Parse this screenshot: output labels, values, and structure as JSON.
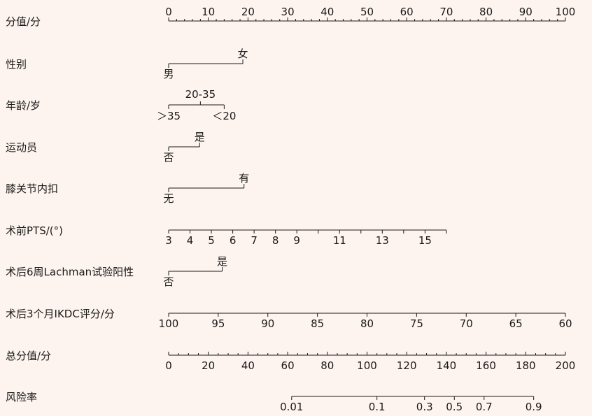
{
  "chart_data": {
    "type": "nomogram",
    "colors": {
      "background": "#fdf4ef",
      "ink": "#1a1a1a"
    },
    "rows": [
      {
        "label": "分值/分",
        "kind": "points",
        "range": [
          0,
          100
        ],
        "major_ticks": [
          0,
          10,
          20,
          30,
          40,
          50,
          60,
          70,
          80,
          90,
          100
        ],
        "minor_step": 2
      },
      {
        "label": "性别",
        "kind": "categorical",
        "levels": [
          {
            "label": "男",
            "points": 0
          },
          {
            "label": "女",
            "points": 18.7
          }
        ]
      },
      {
        "label": "年龄/岁",
        "kind": "categorical",
        "levels": [
          {
            "label": "＞35",
            "points": 0
          },
          {
            "label": "20-35",
            "points": 8
          },
          {
            "label": "＜20",
            "points": 14
          }
        ]
      },
      {
        "label": "运动员",
        "kind": "categorical",
        "levels": [
          {
            "label": "否",
            "points": 0
          },
          {
            "label": "是",
            "points": 7.8
          }
        ]
      },
      {
        "label": "膝关节内扣",
        "kind": "categorical",
        "levels": [
          {
            "label": "无",
            "points": 0
          },
          {
            "label": "有",
            "points": 19
          }
        ]
      },
      {
        "label": "术前PTS/(°)",
        "kind": "continuous",
        "axis_start": 3,
        "axis_end": 16,
        "points_start": 0,
        "points_end": 70,
        "tick_values": [
          3,
          4,
          5,
          6,
          7,
          8,
          9,
          10,
          11,
          12,
          13,
          14,
          15,
          16
        ],
        "tick_labels": [
          "3",
          "4",
          "5",
          "6",
          "7",
          "8",
          "9",
          "11",
          "13",
          "15"
        ]
      },
      {
        "label": "术后6周Lachman试验阳性",
        "kind": "categorical",
        "levels": [
          {
            "label": "否",
            "points": 0
          },
          {
            "label": "是",
            "points": 13.5
          }
        ]
      },
      {
        "label": "术后3个月IKDC评分/分",
        "kind": "continuous",
        "axis_start": 100,
        "axis_end": 60,
        "points_start": 0,
        "points_end": 100,
        "tick_values": [
          100,
          95,
          90,
          85,
          80,
          75,
          70,
          65,
          60
        ],
        "tick_labels": [
          "100",
          "95",
          "90",
          "85",
          "80",
          "75",
          "70",
          "65",
          "60"
        ]
      },
      {
        "label": "总分值/分",
        "kind": "total",
        "range": [
          0,
          200
        ],
        "major_ticks": [
          0,
          20,
          40,
          60,
          80,
          100,
          120,
          140,
          160,
          180,
          200
        ],
        "minor_step": 5
      },
      {
        "label": "风险率",
        "kind": "risk",
        "ticks": [
          {
            "label": "0.01",
            "total_points": 62
          },
          {
            "label": "0.1",
            "total_points": 105
          },
          {
            "label": "0.3",
            "total_points": 129
          },
          {
            "label": "0.5",
            "total_points": 144
          },
          {
            "label": "0.7",
            "total_points": 159
          },
          {
            "label": "0.9",
            "total_points": 184
          }
        ]
      }
    ]
  }
}
